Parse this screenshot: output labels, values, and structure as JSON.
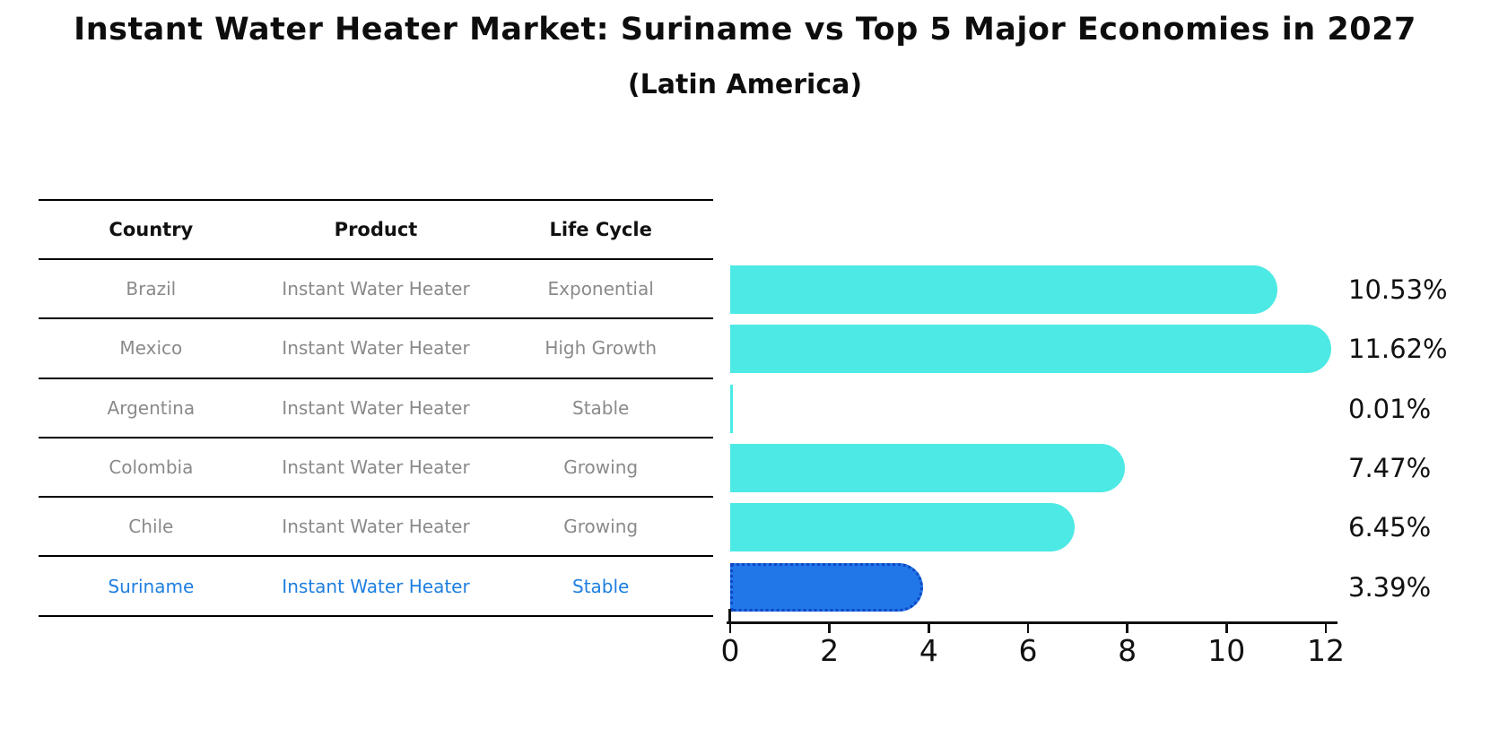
{
  "title": "Instant Water Heater Market: Suriname vs Top 5 Major Economies in 2027",
  "subtitle": "(Latin America)",
  "table": {
    "headers": [
      "Country",
      "Product",
      "Life Cycle"
    ],
    "rows": [
      {
        "country": "Brazil",
        "product": "Instant Water Heater",
        "life_cycle": "Exponential",
        "highlight": false
      },
      {
        "country": "Mexico",
        "product": "Instant Water Heater",
        "life_cycle": "High Growth",
        "highlight": false
      },
      {
        "country": "Argentina",
        "product": "Instant Water Heater",
        "life_cycle": "Stable",
        "highlight": false
      },
      {
        "country": "Colombia",
        "product": "Instant Water Heater",
        "life_cycle": "Growing",
        "highlight": false
      },
      {
        "country": "Chile",
        "product": "Instant Water Heater",
        "life_cycle": "Growing",
        "highlight": false
      },
      {
        "country": "Suriname",
        "product": "Instant Water Heater",
        "life_cycle": "Stable",
        "highlight": true
      }
    ]
  },
  "chart_data": {
    "type": "bar",
    "orientation": "horizontal",
    "title": "Instant Water Heater Market: Suriname vs Top 5 Major Economies in 2027 (Latin America)",
    "categories": [
      "Brazil",
      "Mexico",
      "Argentina",
      "Colombia",
      "Chile",
      "Suriname"
    ],
    "values": [
      10.53,
      11.62,
      0.01,
      7.47,
      6.45,
      3.39
    ],
    "value_labels": [
      "10.53%",
      "11.62%",
      "0.01%",
      "7.47%",
      "6.45%",
      "3.39%"
    ],
    "xlabel": "",
    "ylabel": "",
    "xlim": [
      0,
      12
    ],
    "xticks": [
      0,
      2,
      4,
      6,
      8,
      10,
      12
    ],
    "grid": false,
    "legend": "none",
    "highlight_index": 5,
    "bar_color": "#4de9e4",
    "highlight_bar_color": "#2176e8",
    "highlight_bar_edge_color": "#0d47c2",
    "highlight_bar_edge_style": "dotted"
  },
  "colors": {
    "title_text": "#0d0d0d",
    "table_header_text": "#111111",
    "table_body_text": "#8a8a8a",
    "highlight_text": "#1e7fe0",
    "axis": "#111111",
    "rule_lines": "#000000",
    "background": "#ffffff"
  }
}
